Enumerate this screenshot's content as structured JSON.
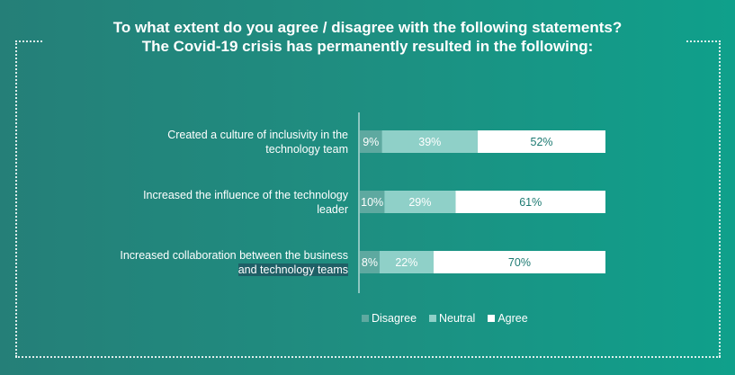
{
  "title": {
    "line1": "To what extent do you agree / disagree with the following statements?",
    "line2": "The Covid-19 crisis has permanently resulted in the following:"
  },
  "chart_data": {
    "type": "bar",
    "orientation": "horizontal",
    "stacked": true,
    "percent": true,
    "categories": [
      {
        "line1": "Created a culture of inclusivity in the",
        "line2": "technology team"
      },
      {
        "line1": "Increased the influence of the technology",
        "line2": "leader"
      },
      {
        "line1": "Increased collaboration between the business",
        "line2": "and technology teams"
      }
    ],
    "series": [
      {
        "name": "Disagree",
        "values": [
          9,
          10,
          8
        ],
        "color": "#5ea9a0",
        "text_color": "#ffffff"
      },
      {
        "name": "Neutral",
        "values": [
          39,
          29,
          22
        ],
        "color": "#8fd0c8",
        "text_color": "#ffffff"
      },
      {
        "name": "Agree",
        "values": [
          52,
          61,
          70
        ],
        "color": "#ffffff",
        "text_color": "#1d7a72"
      }
    ],
    "value_labels": [
      [
        "9%",
        "39%",
        "52%"
      ],
      [
        "10%",
        "29%",
        "61%"
      ],
      [
        "8%",
        "22%",
        "70%"
      ]
    ],
    "xlim": [
      0,
      100
    ],
    "legend_position": "bottom",
    "grid": false
  }
}
